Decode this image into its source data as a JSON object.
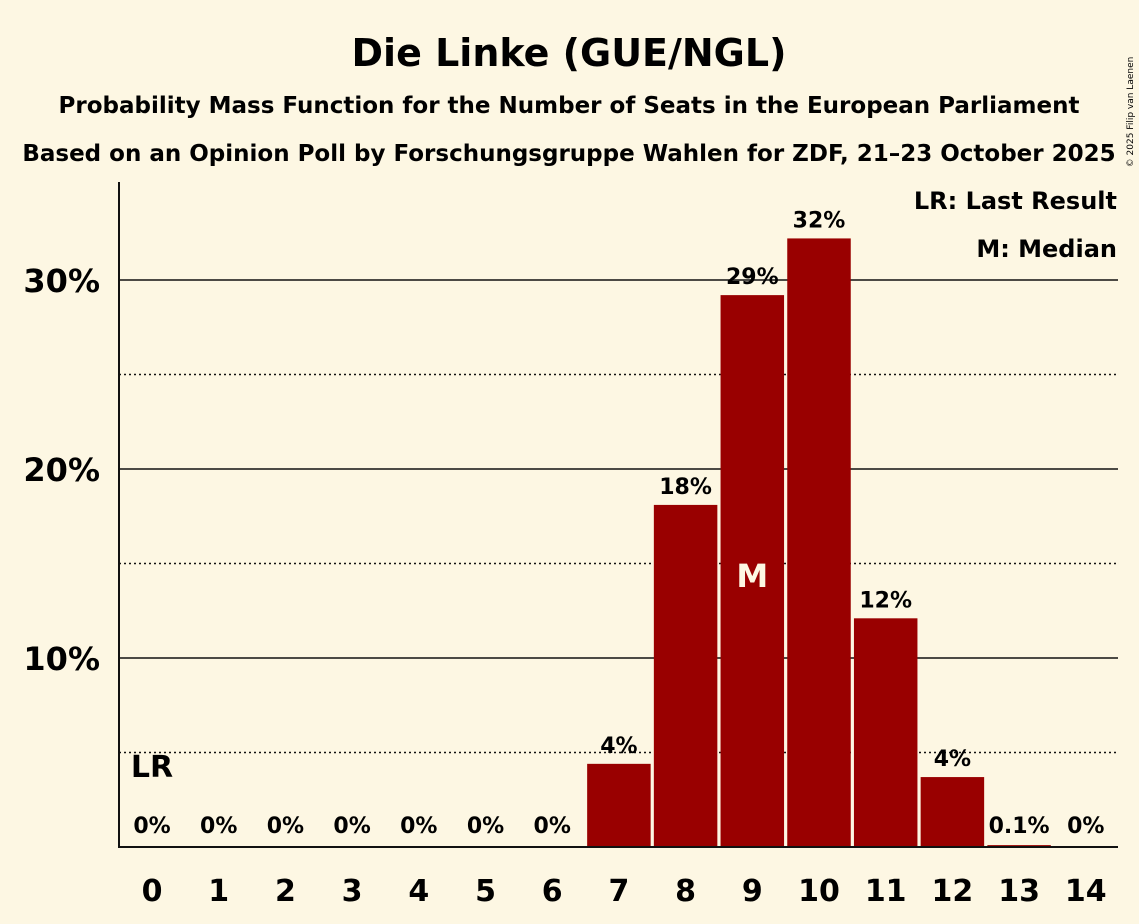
{
  "chart_data": {
    "type": "bar",
    "title": "Die Linke (GUE/NGL)",
    "subtitle": "Probability Mass Function for the Number of Seats in the European Parliament",
    "subtitle2": "Based on an Opinion Poll by Forschungsgruppe Wahlen for ZDF, 21–23 October 2025",
    "copyright": "© 2025 Filip van Laenen",
    "categories": [
      "0",
      "1",
      "2",
      "3",
      "4",
      "5",
      "6",
      "7",
      "8",
      "9",
      "10",
      "11",
      "12",
      "13",
      "14"
    ],
    "values": [
      0,
      0,
      0,
      0,
      0,
      0,
      0,
      4.4,
      18.1,
      29.2,
      32.2,
      12.1,
      3.7,
      0.1,
      0
    ],
    "value_labels": [
      "0%",
      "0%",
      "0%",
      "0%",
      "0%",
      "0%",
      "0%",
      "4%",
      "18%",
      "29%",
      "32%",
      "12%",
      "4%",
      "0.1%",
      "0%"
    ],
    "ylim": [
      0,
      35
    ],
    "y_major_ticks": [
      10,
      20,
      30
    ],
    "y_major_tick_labels": [
      "10%",
      "20%",
      "30%"
    ],
    "y_minor_ticks": [
      5,
      15,
      25
    ],
    "bar_color": "#990000",
    "last_result_seat": 0,
    "last_result_marker": "LR",
    "median_seat": 9,
    "median_marker": "M",
    "legend": {
      "placement": "top-right",
      "items": [
        "LR: Last Result",
        "M: Median"
      ]
    }
  }
}
